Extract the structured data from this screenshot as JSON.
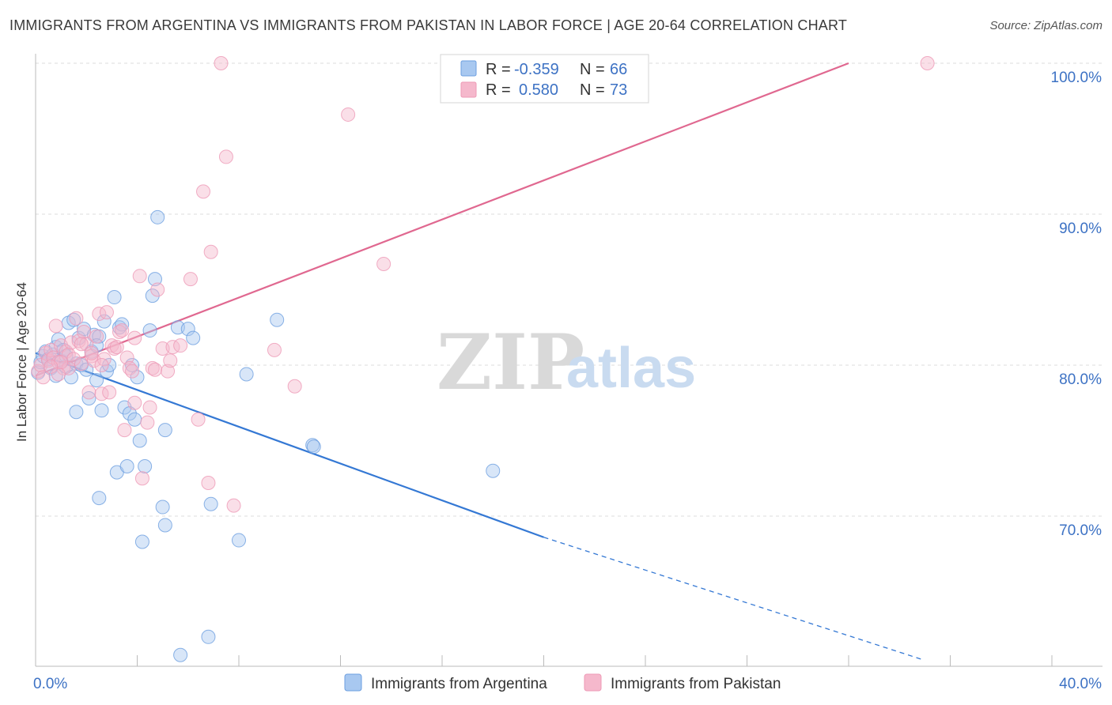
{
  "header": {
    "title": "IMMIGRANTS FROM ARGENTINA VS IMMIGRANTS FROM PAKISTAN IN LABOR FORCE | AGE 20-64 CORRELATION CHART",
    "source": "Source: ZipAtlas.com"
  },
  "legend": {
    "r_label": "R =",
    "n_label": "N =",
    "rows": [
      {
        "r": "-0.359",
        "n": "66",
        "color": "#a8c8f0"
      },
      {
        "r": "0.580",
        "n": "73",
        "color": "#f5b8cc"
      }
    ]
  },
  "watermark": {
    "zip": "ZIP",
    "atlas": "atlas"
  },
  "chart_data": {
    "type": "scatter",
    "title": "IMMIGRANTS FROM ARGENTINA VS IMMIGRANTS FROM PAKISTAN IN LABOR FORCE | AGE 20-64 CORRELATION CHART",
    "xlabel": "",
    "ylabel": "In Labor Force | Age 20-64",
    "xlim": [
      0,
      40
    ],
    "ylim": [
      60.5,
      101
    ],
    "x_tick_labels": [
      "0.0%",
      "40.0%"
    ],
    "y_ticks": [
      70,
      80,
      90,
      100
    ],
    "y_tick_labels": [
      "70.0%",
      "80.0%",
      "90.0%",
      "100.0%"
    ],
    "grid": true,
    "legend_position": "top-center",
    "series": [
      {
        "name": "Immigrants from Argentina",
        "color": "#6d9fe0",
        "fill": "#a8c8f0",
        "line_color": "#3478d4",
        "trend": {
          "x0": 0,
          "y0": 80.8,
          "x1": 20,
          "y1": 68.6,
          "dash_to_x": 34.9,
          "dash_to_y": 60.5
        },
        "points": [
          [
            0.1,
            79.5
          ],
          [
            0.2,
            80.2
          ],
          [
            0.3,
            80.6
          ],
          [
            0.4,
            80.9
          ],
          [
            0.5,
            80.4
          ],
          [
            0.6,
            79.8
          ],
          [
            0.7,
            80.7
          ],
          [
            0.8,
            81.2
          ],
          [
            0.9,
            81.7
          ],
          [
            1.0,
            80.3
          ],
          [
            1.1,
            81.0
          ],
          [
            1.2,
            79.9
          ],
          [
            1.3,
            82.8
          ],
          [
            1.4,
            79.2
          ],
          [
            1.5,
            83.0
          ],
          [
            1.6,
            80.1
          ],
          [
            1.7,
            81.8
          ],
          [
            1.8,
            80.0
          ],
          [
            1.9,
            82.4
          ],
          [
            2.0,
            79.7
          ],
          [
            2.1,
            77.8
          ],
          [
            2.2,
            80.9
          ],
          [
            2.3,
            82.0
          ],
          [
            2.4,
            79.0
          ],
          [
            2.5,
            81.9
          ],
          [
            2.6,
            77.0
          ],
          [
            2.7,
            82.9
          ],
          [
            2.8,
            79.6
          ],
          [
            2.9,
            80.0
          ],
          [
            3.1,
            84.5
          ],
          [
            3.2,
            72.9
          ],
          [
            3.3,
            82.5
          ],
          [
            3.4,
            82.7
          ],
          [
            3.5,
            77.2
          ],
          [
            3.6,
            73.3
          ],
          [
            3.7,
            76.8
          ],
          [
            3.8,
            80.0
          ],
          [
            3.9,
            76.4
          ],
          [
            4.0,
            79.2
          ],
          [
            4.1,
            75.0
          ],
          [
            4.2,
            68.3
          ],
          [
            4.3,
            73.3
          ],
          [
            4.5,
            82.3
          ],
          [
            4.6,
            84.6
          ],
          [
            4.7,
            85.7
          ],
          [
            4.8,
            89.8
          ],
          [
            5.0,
            70.6
          ],
          [
            5.1,
            75.7
          ],
          [
            5.1,
            69.4
          ],
          [
            5.6,
            82.5
          ],
          [
            5.7,
            60.8
          ],
          [
            6.0,
            82.4
          ],
          [
            6.2,
            81.8
          ],
          [
            6.8,
            62.0
          ],
          [
            6.9,
            70.8
          ],
          [
            8.0,
            68.4
          ],
          [
            8.3,
            79.4
          ],
          [
            9.5,
            83.0
          ],
          [
            10.9,
            74.7
          ],
          [
            10.95,
            74.6
          ],
          [
            18.0,
            73.0
          ],
          [
            1.2,
            80.6
          ],
          [
            2.4,
            81.3
          ],
          [
            0.8,
            79.3
          ],
          [
            1.6,
            76.9
          ],
          [
            2.5,
            71.2
          ]
        ]
      },
      {
        "name": "Immigrants from Pakistan",
        "color": "#ee9ab6",
        "fill": "#f5b8cc",
        "line_color": "#e06890",
        "trend": {
          "x0": 0,
          "y0": 79.3,
          "x1": 32.0,
          "y1": 100.0
        },
        "points": [
          [
            0.1,
            79.6
          ],
          [
            0.2,
            80.0
          ],
          [
            0.3,
            79.2
          ],
          [
            0.4,
            80.8
          ],
          [
            0.5,
            80.3
          ],
          [
            0.6,
            81.0
          ],
          [
            0.7,
            80.5
          ],
          [
            0.8,
            82.6
          ],
          [
            0.9,
            80.2
          ],
          [
            1.0,
            81.3
          ],
          [
            1.1,
            79.8
          ],
          [
            1.2,
            80.9
          ],
          [
            1.3,
            80.7
          ],
          [
            1.4,
            81.5
          ],
          [
            1.5,
            80.4
          ],
          [
            1.6,
            83.1
          ],
          [
            1.7,
            81.6
          ],
          [
            1.8,
            80.1
          ],
          [
            1.9,
            82.2
          ],
          [
            2.0,
            81.4
          ],
          [
            2.1,
            78.2
          ],
          [
            2.2,
            80.6
          ],
          [
            2.3,
            80.3
          ],
          [
            2.4,
            81.9
          ],
          [
            2.5,
            83.4
          ],
          [
            2.6,
            78.1
          ],
          [
            2.7,
            80.4
          ],
          [
            2.8,
            83.5
          ],
          [
            2.9,
            78.2
          ],
          [
            3.0,
            81.3
          ],
          [
            3.1,
            81.1
          ],
          [
            3.2,
            81.2
          ],
          [
            3.3,
            82.2
          ],
          [
            3.4,
            82.3
          ],
          [
            3.5,
            75.7
          ],
          [
            3.6,
            80.5
          ],
          [
            3.7,
            79.8
          ],
          [
            3.8,
            79.6
          ],
          [
            3.9,
            77.5
          ],
          [
            4.1,
            85.9
          ],
          [
            4.2,
            72.5
          ],
          [
            4.4,
            76.2
          ],
          [
            4.5,
            77.2
          ],
          [
            4.6,
            79.8
          ],
          [
            4.8,
            85.0
          ],
          [
            5.0,
            81.1
          ],
          [
            5.2,
            79.6
          ],
          [
            5.4,
            81.2
          ],
          [
            5.7,
            81.3
          ],
          [
            6.1,
            85.7
          ],
          [
            6.4,
            76.4
          ],
          [
            6.6,
            91.5
          ],
          [
            6.8,
            72.2
          ],
          [
            6.9,
            87.5
          ],
          [
            7.3,
            100.0
          ],
          [
            7.5,
            93.8
          ],
          [
            7.8,
            70.7
          ],
          [
            9.4,
            81.0
          ],
          [
            10.2,
            78.6
          ],
          [
            12.3,
            96.6
          ],
          [
            13.7,
            86.7
          ],
          [
            16.4,
            100.0
          ],
          [
            35.1,
            100.0
          ],
          [
            1.3,
            79.8
          ],
          [
            0.9,
            79.4
          ],
          [
            2.6,
            80.0
          ],
          [
            3.9,
            81.8
          ],
          [
            5.3,
            80.3
          ],
          [
            1.0,
            80.2
          ],
          [
            2.2,
            80.8
          ],
          [
            0.6,
            79.9
          ],
          [
            1.8,
            81.4
          ],
          [
            4.7,
            79.7
          ]
        ]
      }
    ]
  }
}
